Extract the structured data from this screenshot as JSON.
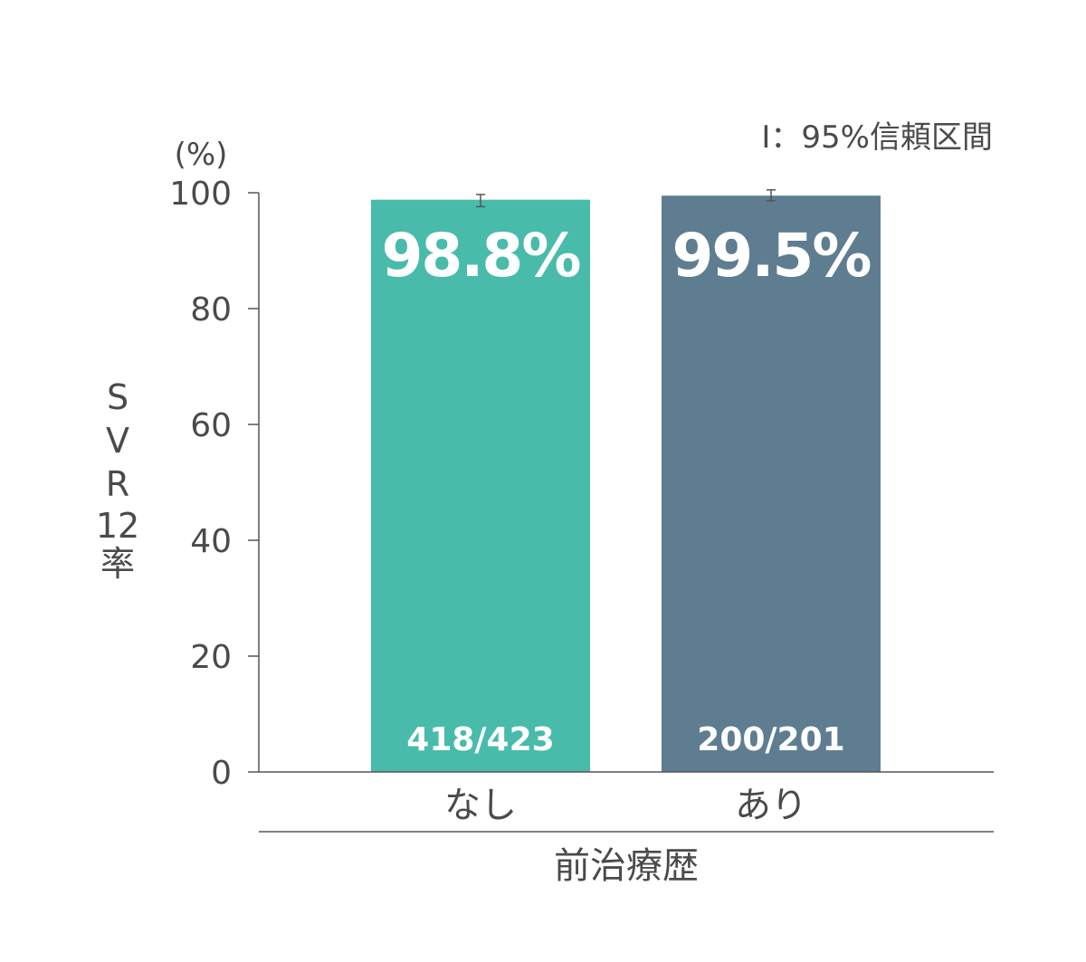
{
  "chart_data": {
    "type": "bar",
    "categories": [
      "なし",
      "あり"
    ],
    "values": [
      98.8,
      99.5
    ],
    "value_labels": [
      "98.8%",
      "99.5%"
    ],
    "counts": [
      "418/423",
      "200/201"
    ],
    "ci_low": [
      97.6,
      98.6
    ],
    "ci_high": [
      99.7,
      100.5
    ],
    "colors": [
      "#48bbab",
      "#5f7d91"
    ],
    "ylabel": "SVR12率",
    "ylabel_chars": [
      "S",
      "V",
      "R",
      "12",
      "率"
    ],
    "y_unit": "(%)",
    "xlabel": "前治療歴",
    "ylim": [
      0,
      100
    ],
    "yticks": [
      "0",
      "20",
      "40",
      "60",
      "80",
      "100"
    ],
    "legend_note": "I：95%信頼区間",
    "grid": false
  }
}
